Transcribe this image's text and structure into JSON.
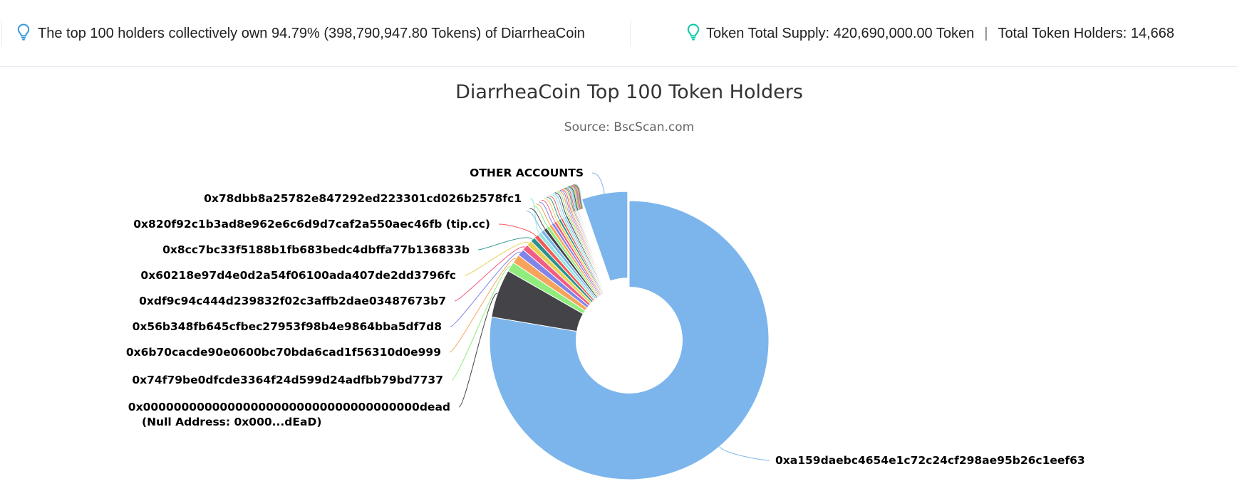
{
  "header": {
    "left_text": "The top 100 holders collectively own 94.79% (398,790,947.80 Tokens) of DiarrheaCoin",
    "supply_text": "Token Total Supply: 420,690,000.00 Token",
    "separator": "|",
    "holders_text": "Total Token Holders: 14,668",
    "icon": "lightbulb-icon",
    "icon_colors": [
      "#3498db",
      "#00c9a7"
    ]
  },
  "chart_data": {
    "type": "pie",
    "title": "DiarrheaCoin Top 100 Token Holders",
    "subtitle": "Source: BscScan.com",
    "inner_radius_ratio": 0.38,
    "slices": [
      {
        "label": "0xa159daebc4654e1c72c24cf298ae95b26c1eef63",
        "value": 76.0,
        "color": "#7cb5ec"
      },
      {
        "label": "0x000000000000000000000000000000000000dead",
        "label_line2": "(Null Address: 0x000...dEaD)",
        "value": 5.5,
        "color": "#434348"
      },
      {
        "label": "0x74f79be0dfcde3364f24d599d24adfbb79bd7737",
        "value": 1.1,
        "color": "#90ed7d"
      },
      {
        "label": "0x6b70cacde90e0600bc70bda6cad1f56310d0e999",
        "value": 1.0,
        "color": "#f7a35c"
      },
      {
        "label": "0x56b348fb645cfbec27953f98b4e9864bba5df7d8",
        "value": 0.8,
        "color": "#8085e9"
      },
      {
        "label": "0xdf9c94c444d239832f02c3affb2dae03487673b7",
        "value": 0.7,
        "color": "#f15c80"
      },
      {
        "label": "0x60218e97d4e0d2a54f06100ada407de2dd3796fc",
        "value": 0.6,
        "color": "#e4d354"
      },
      {
        "label": "0x8cc7bc33f5188b1fb683bedc4dbffa77b136833b",
        "value": 0.55,
        "color": "#2b908f"
      },
      {
        "label": "0x820f92c1b3ad8e962e6c6d9d7caf2a550aec46fb (tip.cc)",
        "value": 0.5,
        "color": "#f45b5b"
      },
      {
        "label": "0x78dbb8a25782e847292ed223301cd026b2578fc1",
        "value": 0.45,
        "color": "#91e8e1"
      },
      {
        "label": "",
        "value": 0.4,
        "color": "#7cb5ec"
      },
      {
        "label": "",
        "value": 0.38,
        "color": "#434348"
      },
      {
        "label": "",
        "value": 0.36,
        "color": "#90ed7d"
      },
      {
        "label": "",
        "value": 0.34,
        "color": "#f7a35c"
      },
      {
        "label": "",
        "value": 0.32,
        "color": "#8085e9"
      },
      {
        "label": "",
        "value": 0.3,
        "color": "#f15c80"
      },
      {
        "label": "",
        "value": 0.28,
        "color": "#e4d354"
      },
      {
        "label": "",
        "value": 0.26,
        "color": "#2b908f"
      },
      {
        "label": "",
        "value": 0.24,
        "color": "#f45b5b"
      },
      {
        "label": "",
        "value": 0.22,
        "color": "#91e8e1"
      },
      {
        "label": "",
        "value": 0.2,
        "color": "#7cb5ec"
      },
      {
        "label": "",
        "value": 0.19,
        "color": "#434348"
      },
      {
        "label": "",
        "value": 0.18,
        "color": "#90ed7d"
      },
      {
        "label": "",
        "value": 0.17,
        "color": "#f7a35c"
      },
      {
        "label": "",
        "value": 0.16,
        "color": "#8085e9"
      },
      {
        "label": "",
        "value": 0.15,
        "color": "#f15c80"
      },
      {
        "label": "",
        "value": 0.14,
        "color": "#e4d354"
      },
      {
        "label": "",
        "value": 0.13,
        "color": "#2b908f"
      },
      {
        "label": "",
        "value": 0.12,
        "color": "#f45b5b"
      },
      {
        "label": "",
        "value": 0.11,
        "color": "#91e8e1"
      },
      {
        "label": "",
        "value": 0.1,
        "color": "#7cb5ec"
      },
      {
        "label": "",
        "value": 0.1,
        "color": "#434348"
      },
      {
        "label": "",
        "value": 0.09,
        "color": "#90ed7d"
      },
      {
        "label": "",
        "value": 0.09,
        "color": "#f7a35c"
      },
      {
        "label": "",
        "value": 0.08,
        "color": "#8085e9"
      },
      {
        "label": "",
        "value": 0.08,
        "color": "#f15c80"
      },
      {
        "label": "",
        "value": 0.07,
        "color": "#e4d354"
      },
      {
        "label": "",
        "value": 0.07,
        "color": "#2b908f"
      },
      {
        "label": "",
        "value": 0.06,
        "color": "#f45b5b"
      },
      {
        "label": "",
        "value": 0.06,
        "color": "#91e8e1"
      },
      {
        "label": "OTHER ACCOUNTS",
        "value": 5.21,
        "color": "#7cb5ec",
        "sliced": true
      }
    ]
  }
}
